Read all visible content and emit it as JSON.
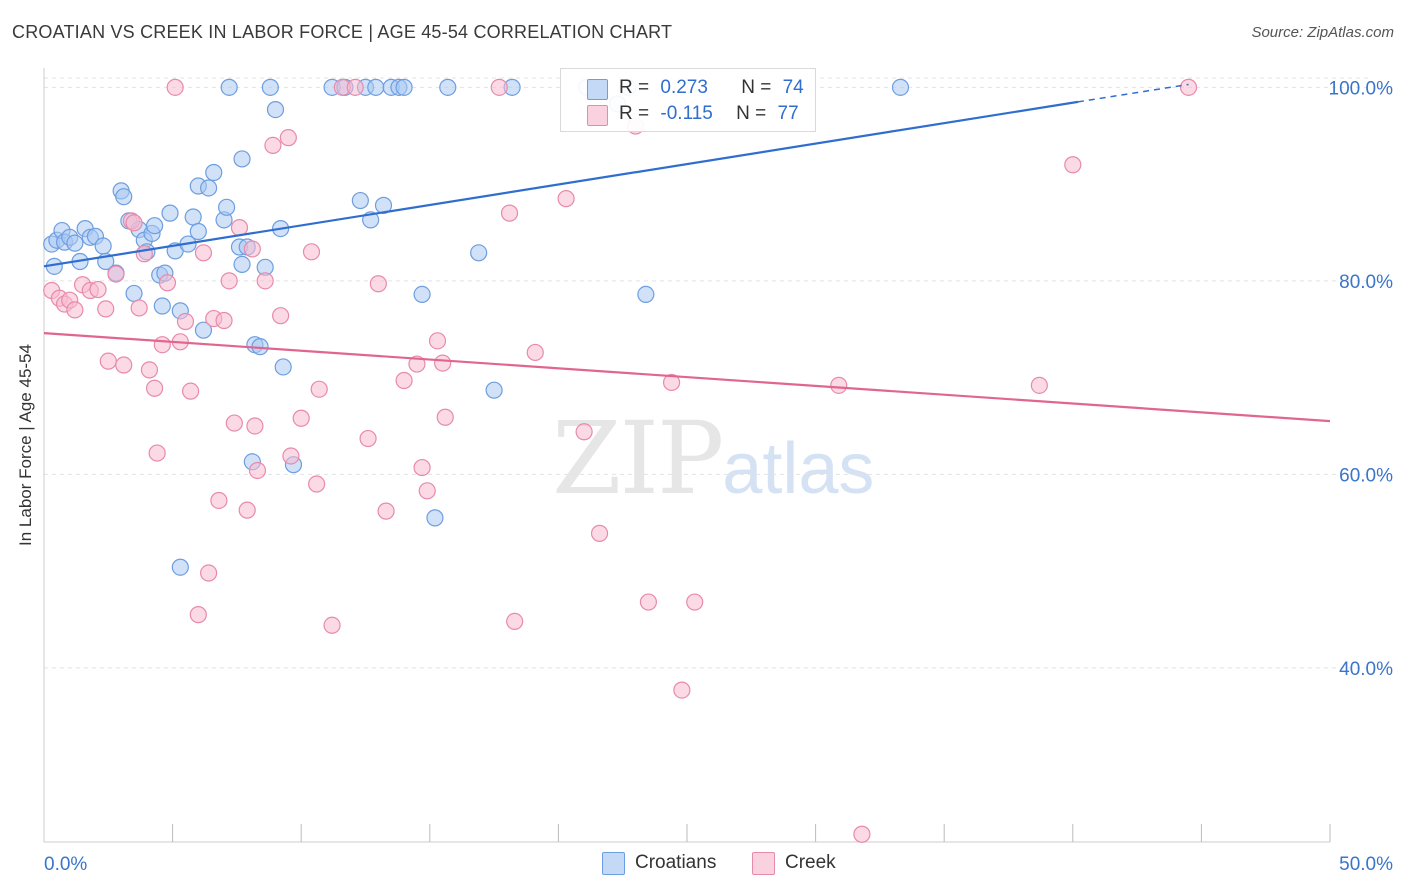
{
  "title": "CROATIAN VS CREEK IN LABOR FORCE | AGE 45-54 CORRELATION CHART",
  "source": "Source: ZipAtlas.com",
  "watermark": {
    "zip": "ZIP",
    "atlas": "atlas"
  },
  "legend": {
    "rows": [
      {
        "r_label": "R =",
        "r_value": "0.273",
        "n_label": "N =",
        "n_value": "74",
        "color": "#a9c8f2",
        "border": "#6d9ee0"
      },
      {
        "r_label": "R =",
        "r_value": "-0.115",
        "n_label": "N =",
        "n_value": "77",
        "color": "#f7bcd0",
        "border": "#e88aaa"
      }
    ]
  },
  "bottom_legend": [
    {
      "label": "Croatians",
      "color": "#a9c8f2",
      "border": "#6d9ee0"
    },
    {
      "label": "Creek",
      "color": "#f7bcd0",
      "border": "#e88aaa"
    }
  ],
  "chart_data": {
    "type": "scatter",
    "title": "CROATIAN VS CREEK IN LABOR FORCE | AGE 45-54 CORRELATION CHART",
    "xlabel": "",
    "ylabel": "In Labor Force | Age 45-54",
    "xlim": [
      0,
      50
    ],
    "ylim": [
      22,
      102
    ],
    "x_tick_labels": [
      "0.0%",
      "50.0%"
    ],
    "y_ticks": [
      40,
      60,
      80,
      100
    ],
    "y_tick_labels": [
      "40.0%",
      "60.0%",
      "80.0%",
      "100.0%"
    ],
    "grid": "horizontal dashed",
    "legend_position": "top-center",
    "series": [
      {
        "name": "Croatians",
        "color": "#6d9ee0",
        "fill": "#a9c8f2",
        "line_color": "#2f6ecf",
        "trend": {
          "x": [
            0,
            40.2
          ],
          "y": [
            81.5,
            98.5
          ],
          "dashed_to": [
            44.5,
            100.3
          ]
        },
        "points": [
          [
            0.3,
            83.8
          ],
          [
            0.5,
            84.2
          ],
          [
            0.7,
            85.2
          ],
          [
            0.8,
            84.0
          ],
          [
            1.0,
            84.5
          ],
          [
            1.2,
            83.9
          ],
          [
            1.4,
            82.0
          ],
          [
            1.6,
            85.4
          ],
          [
            1.8,
            84.5
          ],
          [
            2.0,
            84.6
          ],
          [
            2.3,
            83.6
          ],
          [
            2.4,
            82.0
          ],
          [
            2.8,
            80.8
          ],
          [
            3.0,
            89.3
          ],
          [
            3.1,
            88.7
          ],
          [
            3.3,
            86.2
          ],
          [
            3.5,
            78.7
          ],
          [
            3.7,
            85.3
          ],
          [
            3.9,
            84.2
          ],
          [
            4.0,
            83.0
          ],
          [
            4.2,
            84.9
          ],
          [
            4.3,
            85.7
          ],
          [
            4.5,
            80.6
          ],
          [
            4.6,
            77.4
          ],
          [
            4.7,
            80.8
          ],
          [
            4.9,
            87.0
          ],
          [
            5.1,
            83.1
          ],
          [
            5.3,
            76.9
          ],
          [
            5.6,
            83.8
          ],
          [
            5.8,
            86.6
          ],
          [
            6.0,
            85.1
          ],
          [
            6.0,
            89.8
          ],
          [
            6.2,
            74.9
          ],
          [
            6.4,
            89.6
          ],
          [
            6.6,
            91.2
          ],
          [
            7.0,
            86.3
          ],
          [
            7.1,
            87.6
          ],
          [
            7.2,
            100.0
          ],
          [
            7.6,
            83.5
          ],
          [
            7.7,
            92.6
          ],
          [
            7.7,
            81.7
          ],
          [
            7.9,
            83.5
          ],
          [
            8.1,
            61.3
          ],
          [
            8.2,
            73.4
          ],
          [
            8.4,
            73.2
          ],
          [
            8.6,
            81.4
          ],
          [
            8.8,
            100.0
          ],
          [
            9.0,
            97.7
          ],
          [
            9.2,
            85.4
          ],
          [
            9.3,
            71.1
          ],
          [
            9.7,
            61.0
          ],
          [
            11.2,
            100.0
          ],
          [
            11.7,
            100.0
          ],
          [
            12.3,
            88.3
          ],
          [
            12.5,
            100.0
          ],
          [
            12.7,
            86.3
          ],
          [
            12.9,
            100.0
          ],
          [
            13.2,
            87.8
          ],
          [
            13.5,
            100.0
          ],
          [
            13.8,
            100.0
          ],
          [
            14.0,
            100.0
          ],
          [
            14.7,
            78.6
          ],
          [
            15.2,
            55.5
          ],
          [
            16.9,
            82.9
          ],
          [
            17.5,
            68.7
          ],
          [
            18.2,
            100.0
          ],
          [
            21.1,
            100.0
          ],
          [
            22.3,
            98.3
          ],
          [
            22.7,
            100.0
          ],
          [
            23.4,
            78.6
          ],
          [
            33.3,
            100.0
          ],
          [
            0.4,
            81.5
          ],
          [
            5.3,
            50.4
          ],
          [
            15.7,
            100.0
          ]
        ]
      },
      {
        "name": "Creek",
        "color": "#e88aaa",
        "fill": "#f7bcd0",
        "line_color": "#e06690",
        "trend": {
          "x": [
            0,
            50
          ],
          "y": [
            74.6,
            65.5
          ]
        },
        "points": [
          [
            0.3,
            79.0
          ],
          [
            0.6,
            78.2
          ],
          [
            0.8,
            77.6
          ],
          [
            1.0,
            78.0
          ],
          [
            1.2,
            77.0
          ],
          [
            1.5,
            79.6
          ],
          [
            1.8,
            79.0
          ],
          [
            2.1,
            79.1
          ],
          [
            2.4,
            77.1
          ],
          [
            2.5,
            71.7
          ],
          [
            2.8,
            80.7
          ],
          [
            3.1,
            71.3
          ],
          [
            3.4,
            86.2
          ],
          [
            3.5,
            86.0
          ],
          [
            3.7,
            77.2
          ],
          [
            3.9,
            82.8
          ],
          [
            4.1,
            70.8
          ],
          [
            4.3,
            68.9
          ],
          [
            4.4,
            62.2
          ],
          [
            4.6,
            73.4
          ],
          [
            4.8,
            79.8
          ],
          [
            5.1,
            100.0
          ],
          [
            5.3,
            73.7
          ],
          [
            5.5,
            75.8
          ],
          [
            5.7,
            68.6
          ],
          [
            6.0,
            45.5
          ],
          [
            6.2,
            82.9
          ],
          [
            6.4,
            49.8
          ],
          [
            6.6,
            76.1
          ],
          [
            6.8,
            57.3
          ],
          [
            7.0,
            75.9
          ],
          [
            7.2,
            80.0
          ],
          [
            7.4,
            65.3
          ],
          [
            7.6,
            85.5
          ],
          [
            7.9,
            56.3
          ],
          [
            8.1,
            83.3
          ],
          [
            8.3,
            60.4
          ],
          [
            8.6,
            80.0
          ],
          [
            8.9,
            94.0
          ],
          [
            9.2,
            76.4
          ],
          [
            9.5,
            94.8
          ],
          [
            9.6,
            61.9
          ],
          [
            10.0,
            65.8
          ],
          [
            10.4,
            83.0
          ],
          [
            10.6,
            59.0
          ],
          [
            10.7,
            68.8
          ],
          [
            11.2,
            44.4
          ],
          [
            11.6,
            100.0
          ],
          [
            12.1,
            100.0
          ],
          [
            12.6,
            63.7
          ],
          [
            13.0,
            79.7
          ],
          [
            13.3,
            56.2
          ],
          [
            14.0,
            69.7
          ],
          [
            14.5,
            71.4
          ],
          [
            14.7,
            60.7
          ],
          [
            14.9,
            58.3
          ],
          [
            15.3,
            73.8
          ],
          [
            15.5,
            71.5
          ],
          [
            15.6,
            65.9
          ],
          [
            17.7,
            100.0
          ],
          [
            18.1,
            87.0
          ],
          [
            18.3,
            44.8
          ],
          [
            19.1,
            72.6
          ],
          [
            20.3,
            88.5
          ],
          [
            21.0,
            64.4
          ],
          [
            21.6,
            53.9
          ],
          [
            23.5,
            46.8
          ],
          [
            24.4,
            69.5
          ],
          [
            24.8,
            37.7
          ],
          [
            25.3,
            46.8
          ],
          [
            30.9,
            69.2
          ],
          [
            31.8,
            22.8
          ],
          [
            38.7,
            69.2
          ],
          [
            40.0,
            92.0
          ],
          [
            44.5,
            100.0
          ],
          [
            23.0,
            96.0
          ],
          [
            8.2,
            65.0
          ]
        ]
      }
    ]
  }
}
